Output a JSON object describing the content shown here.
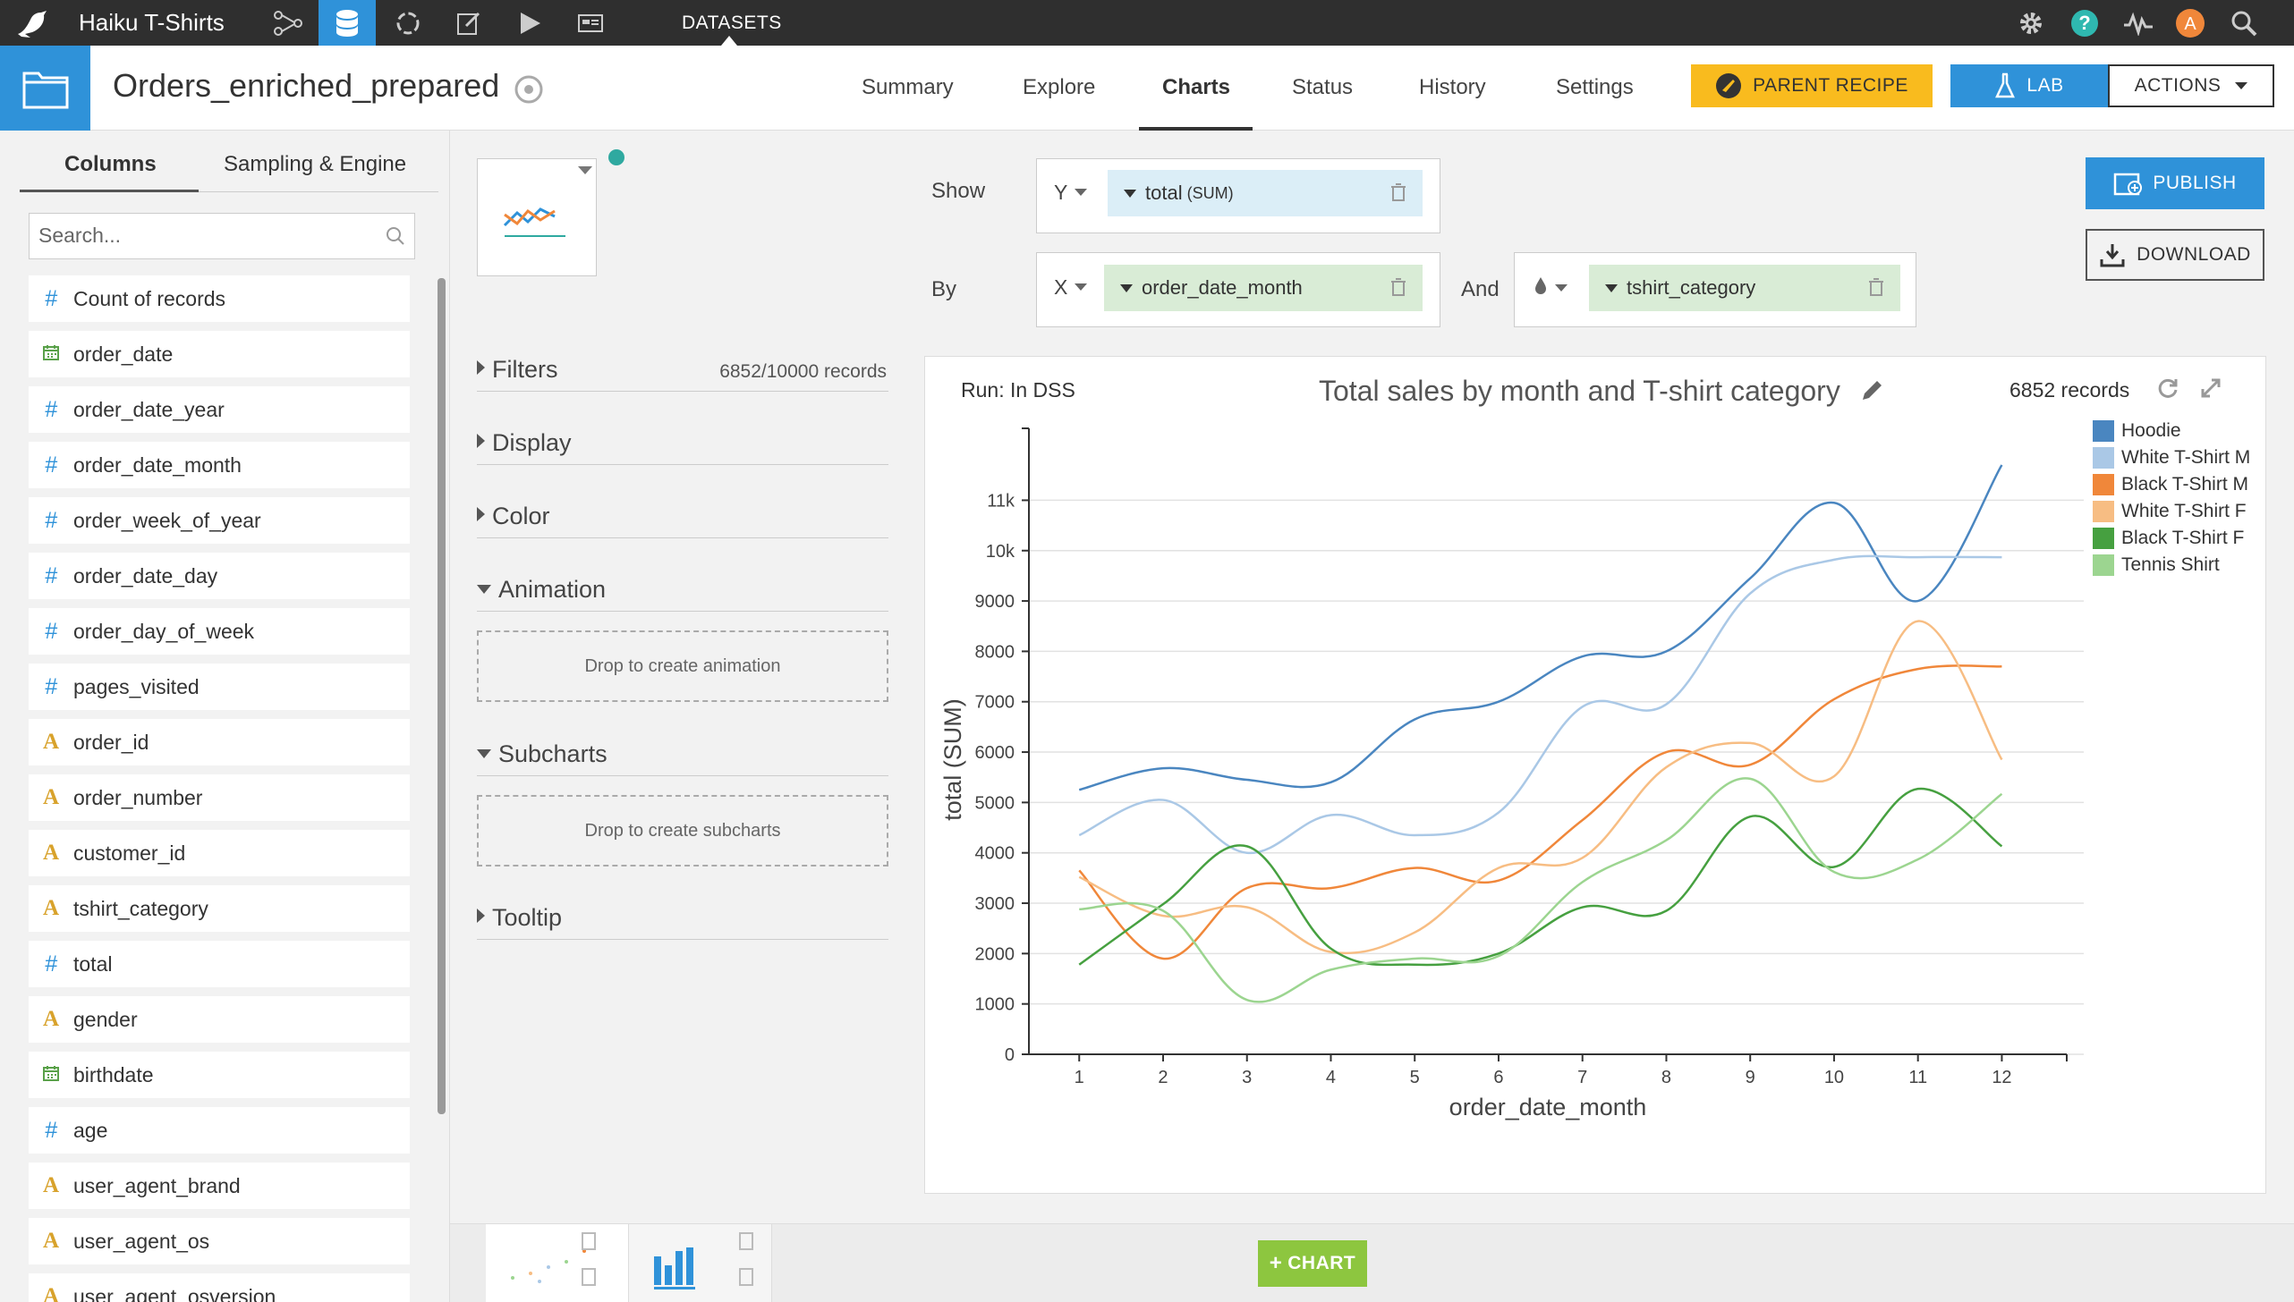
{
  "topbar": {
    "project": "Haiku T-Shirts",
    "section": "DATASETS",
    "avatar_letter": "A",
    "help": "?"
  },
  "header": {
    "dataset_name": "Orders_enriched_prepared",
    "tabs": [
      "Summary",
      "Explore",
      "Charts",
      "Status",
      "History",
      "Settings"
    ],
    "active_tab": "Charts",
    "parent_recipe": "PARENT RECIPE",
    "lab": "LAB",
    "actions": "ACTIONS"
  },
  "left": {
    "tabs": [
      "Columns",
      "Sampling & Engine"
    ],
    "search_placeholder": "Search...",
    "columns": [
      {
        "type": "#",
        "kind": "num",
        "name": "Count of records"
      },
      {
        "type": "date",
        "kind": "date",
        "name": "order_date"
      },
      {
        "type": "#",
        "kind": "num",
        "name": "order_date_year"
      },
      {
        "type": "#",
        "kind": "num",
        "name": "order_date_month"
      },
      {
        "type": "#",
        "kind": "num",
        "name": "order_week_of_year"
      },
      {
        "type": "#",
        "kind": "num",
        "name": "order_date_day"
      },
      {
        "type": "#",
        "kind": "num",
        "name": "order_day_of_week"
      },
      {
        "type": "#",
        "kind": "num",
        "name": "pages_visited"
      },
      {
        "type": "A",
        "kind": "txt",
        "name": "order_id"
      },
      {
        "type": "A",
        "kind": "txt",
        "name": "order_number"
      },
      {
        "type": "A",
        "kind": "txt",
        "name": "customer_id"
      },
      {
        "type": "A",
        "kind": "txt",
        "name": "tshirt_category"
      },
      {
        "type": "#",
        "kind": "num",
        "name": "total"
      },
      {
        "type": "A",
        "kind": "txt",
        "name": "gender"
      },
      {
        "type": "date",
        "kind": "date",
        "name": "birthdate"
      },
      {
        "type": "#",
        "kind": "num",
        "name": "age"
      },
      {
        "type": "A",
        "kind": "txt",
        "name": "user_agent_brand"
      },
      {
        "type": "A",
        "kind": "txt",
        "name": "user_agent_os"
      },
      {
        "type": "A",
        "kind": "txt",
        "name": "user_agent_osversion"
      }
    ]
  },
  "config": {
    "filters": "Filters",
    "filters_count": "6852/10000 records",
    "display": "Display",
    "color": "Color",
    "animation": "Animation",
    "animation_drop": "Drop to create animation",
    "subcharts": "Subcharts",
    "subcharts_drop": "Drop to create subcharts",
    "tooltip": "Tooltip",
    "show_label": "Show",
    "by_label": "By",
    "and_label": "And",
    "y_axis": "Y",
    "x_axis": "X",
    "y_measure": "total",
    "y_agg": "(SUM)",
    "x_dim": "order_date_month",
    "color_dim": "tshirt_category",
    "publish": "PUBLISH",
    "download": "DOWNLOAD",
    "add_chart": "CHART"
  },
  "chart_panel": {
    "run": "Run: In DSS",
    "records": "6852 records"
  },
  "colors": {
    "accent": "#2f92d9",
    "parent_recipe": "#f9bb1e",
    "chart_button": "#8dc63f"
  },
  "chart_data": {
    "type": "line",
    "title": "Total sales by month and T-shirt category",
    "xlabel": "order_date_month",
    "ylabel": "total (SUM)",
    "x": [
      1,
      2,
      3,
      4,
      5,
      6,
      7,
      8,
      9,
      10,
      11,
      12
    ],
    "ylim": [
      0,
      11700
    ],
    "yticks": [
      0,
      1000,
      2000,
      3000,
      4000,
      5000,
      6000,
      7000,
      8000,
      9000,
      10000,
      11000
    ],
    "ytick_labels": [
      "0",
      "1000",
      "2000",
      "3000",
      "4000",
      "5000",
      "6000",
      "7000",
      "8000",
      "9000",
      "10k",
      "11k"
    ],
    "legend": "right",
    "series": [
      {
        "name": "Hoodie",
        "color": "#4a86c0",
        "values": [
          5250,
          5680,
          5450,
          5400,
          6650,
          7000,
          7900,
          8000,
          9450,
          10950,
          9000,
          11700
        ]
      },
      {
        "name": "White T-Shirt M",
        "color": "#aac8e6",
        "values": [
          4350,
          5050,
          4000,
          4750,
          4350,
          4800,
          6900,
          6950,
          9150,
          9820,
          9870,
          9870
        ]
      },
      {
        "name": "Black T-Shirt M",
        "color": "#f0873a",
        "values": [
          3650,
          1900,
          3300,
          3300,
          3700,
          3450,
          4650,
          6000,
          5750,
          7050,
          7650,
          7700
        ]
      },
      {
        "name": "White T-Shirt F",
        "color": "#f7bd83",
        "values": [
          3520,
          2750,
          2920,
          2030,
          2420,
          3700,
          3900,
          5700,
          6180,
          5520,
          8600,
          5850
        ]
      },
      {
        "name": "Black T-Shirt F",
        "color": "#46a040",
        "values": [
          1780,
          2980,
          4130,
          2100,
          1780,
          2000,
          2920,
          2850,
          4720,
          3720,
          5270,
          4130
        ]
      },
      {
        "name": "Tennis Shirt",
        "color": "#9cd590",
        "values": [
          2880,
          2850,
          1080,
          1680,
          1900,
          1950,
          3420,
          4250,
          5470,
          3620,
          3870,
          5170
        ]
      }
    ]
  }
}
